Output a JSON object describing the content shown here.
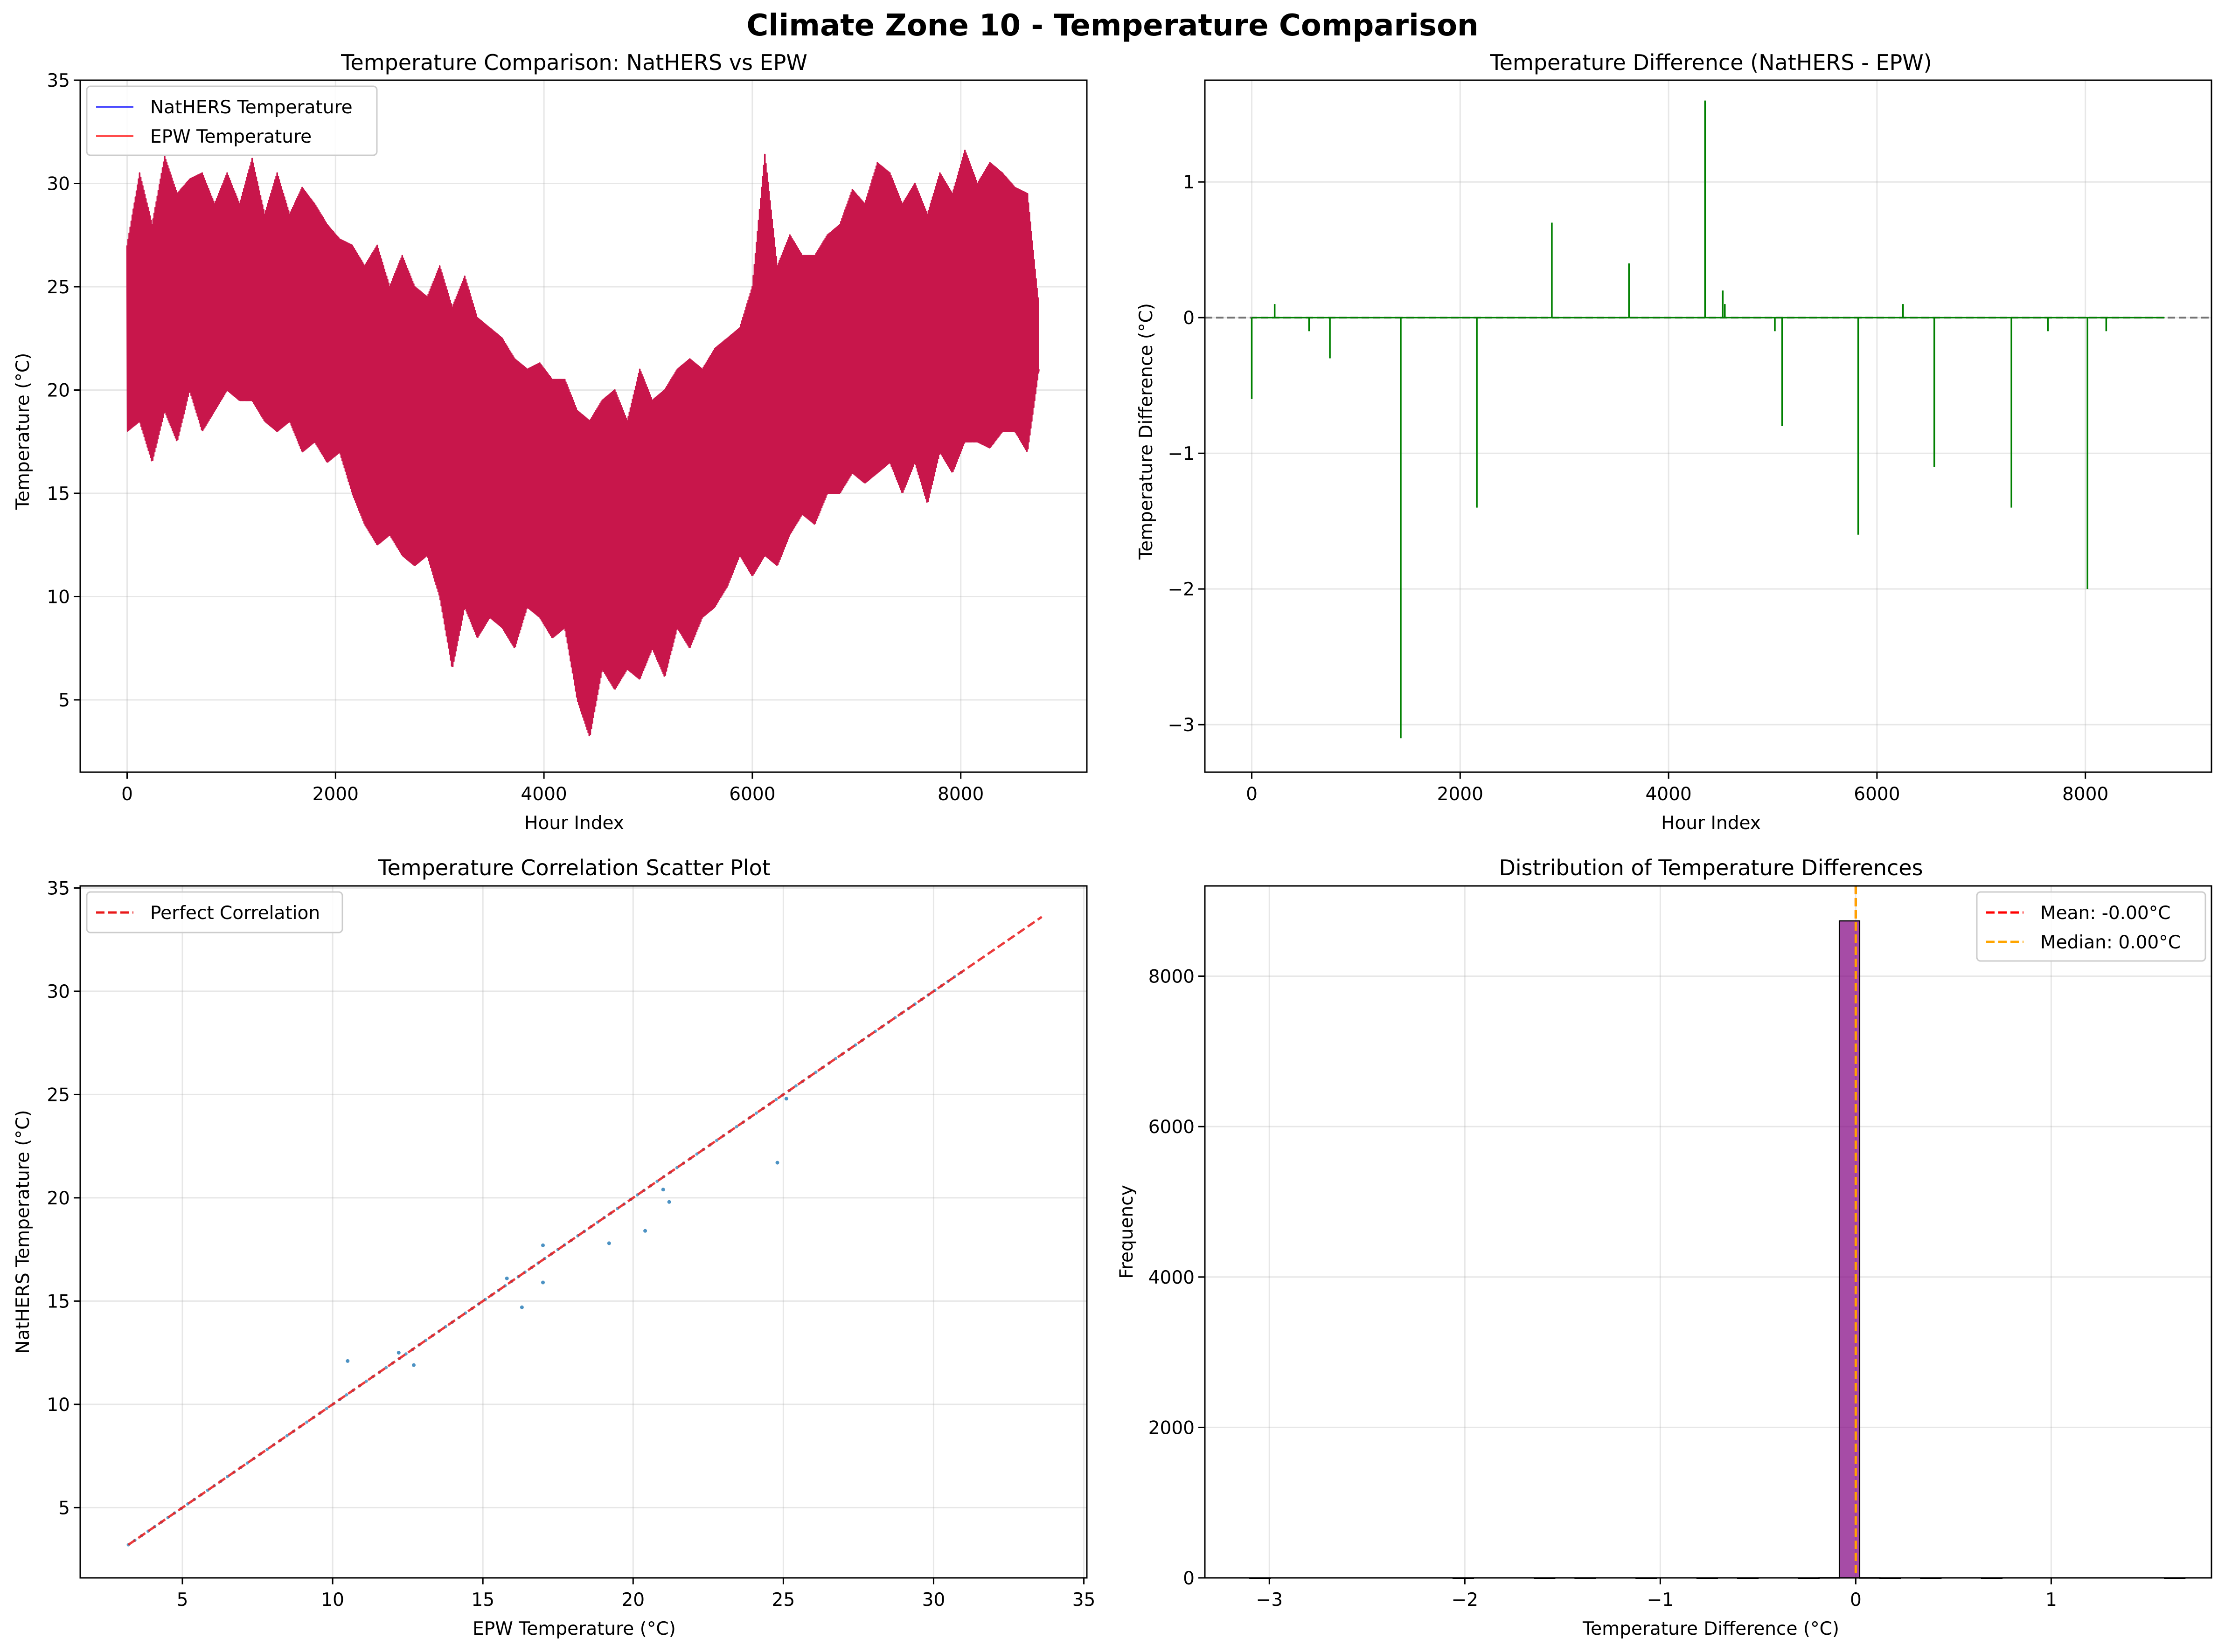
{
  "figure": {
    "title": "Climate Zone 10 - Temperature Comparison"
  },
  "chart_data": [
    {
      "type": "line",
      "title": "Temperature Comparison: NatHERS vs EPW",
      "xlabel": "Hour Index",
      "ylabel": "Temperature (°C)",
      "xlim": [
        -450,
        9210
      ],
      "ylim": [
        1.5,
        35
      ],
      "xticks": [
        0,
        2000,
        4000,
        6000,
        8000
      ],
      "yticks": [
        5,
        10,
        15,
        20,
        25,
        30,
        35
      ],
      "grid": true,
      "legend_position": "upper-left",
      "series": [
        {
          "name": "NatHERS Temperature",
          "color": "#0000ff"
        },
        {
          "name": "EPW Temperature",
          "color": "#ff0000"
        }
      ],
      "rendered_color": "#c8164b",
      "x": [
        0,
        120,
        240,
        360,
        480,
        600,
        720,
        840,
        960,
        1080,
        1200,
        1320,
        1440,
        1560,
        1680,
        1800,
        1920,
        2040,
        2160,
        2280,
        2400,
        2520,
        2640,
        2760,
        2880,
        3000,
        3120,
        3240,
        3360,
        3480,
        3600,
        3720,
        3840,
        3960,
        4080,
        4200,
        4320,
        4440,
        4560,
        4680,
        4800,
        4920,
        5040,
        5160,
        5280,
        5400,
        5520,
        5640,
        5760,
        5880,
        6000,
        6120,
        6240,
        6360,
        6480,
        6600,
        6720,
        6840,
        6960,
        7080,
        7200,
        7320,
        7440,
        7560,
        7680,
        7800,
        7920,
        8040,
        8160,
        8280,
        8400,
        8520,
        8640,
        8750
      ],
      "upper": [
        27,
        30.5,
        28,
        31.3,
        29.5,
        30.2,
        30.5,
        29,
        30.5,
        29,
        31.2,
        28.5,
        30.5,
        28.5,
        29.8,
        29,
        28,
        27.3,
        27,
        26,
        27,
        25,
        26.5,
        25,
        24.5,
        26,
        24,
        25.5,
        23.5,
        23,
        22.5,
        21.5,
        21,
        21.3,
        20.5,
        20.5,
        19,
        18.5,
        19.5,
        20,
        18.5,
        21,
        19.5,
        20,
        21,
        21.5,
        21,
        22,
        22.5,
        23,
        25,
        31.4,
        26,
        27.5,
        26.5,
        26.5,
        27.5,
        28,
        29.7,
        29,
        31,
        30.5,
        29,
        30,
        28.5,
        30.5,
        29.5,
        31.6,
        30,
        31,
        30.5,
        29.8,
        29.5,
        24
      ],
      "lower": [
        18,
        18.5,
        16.5,
        19,
        17.5,
        20,
        18,
        19,
        20,
        19.5,
        19.5,
        18.5,
        18,
        18.5,
        17,
        17.5,
        16.5,
        17,
        15,
        13.5,
        12.5,
        13,
        12,
        11.5,
        12,
        10,
        6.5,
        9.5,
        8,
        9,
        8.5,
        7.5,
        9.5,
        9,
        8,
        8.5,
        5,
        3.2,
        6.5,
        5.5,
        6.5,
        6,
        7.5,
        6.1,
        8.5,
        7.5,
        9,
        9.5,
        10.5,
        12,
        11,
        12,
        11.5,
        13,
        14,
        13.5,
        15,
        15,
        16,
        15.5,
        16,
        16.5,
        15,
        16.5,
        14.5,
        17,
        16,
        17.5,
        17.5,
        17.2,
        18,
        18,
        17,
        21
      ]
    },
    {
      "type": "line",
      "title": "Temperature Difference (NatHERS - EPW)",
      "xlabel": "Hour Index",
      "ylabel": "Temperature Difference (°C)",
      "xlim": [
        -450,
        9210
      ],
      "ylim": [
        -3.35,
        1.75
      ],
      "xticks": [
        0,
        2000,
        4000,
        6000,
        8000
      ],
      "yticks": [
        -3,
        -2,
        -1,
        0,
        1
      ],
      "grid": true,
      "zero_line": true,
      "series_color": "#008000",
      "spikes": [
        {
          "x": 0,
          "value": -0.6
        },
        {
          "x": 220,
          "value": 0.1
        },
        {
          "x": 550,
          "value": -0.1
        },
        {
          "x": 750,
          "value": -0.3
        },
        {
          "x": 1430,
          "value": -3.1
        },
        {
          "x": 2160,
          "value": -1.4
        },
        {
          "x": 2880,
          "value": 0.7
        },
        {
          "x": 3620,
          "value": 0.4
        },
        {
          "x": 4350,
          "value": 1.6
        },
        {
          "x": 4520,
          "value": 0.2
        },
        {
          "x": 4540,
          "value": 0.1
        },
        {
          "x": 5020,
          "value": -0.1
        },
        {
          "x": 5090,
          "value": -0.8
        },
        {
          "x": 5820,
          "value": -1.6
        },
        {
          "x": 6250,
          "value": 0.1
        },
        {
          "x": 6550,
          "value": -1.1
        },
        {
          "x": 7290,
          "value": -1.4
        },
        {
          "x": 7640,
          "value": -0.1
        },
        {
          "x": 8020,
          "value": -2.0
        },
        {
          "x": 8200,
          "value": -0.1
        }
      ]
    },
    {
      "type": "scatter",
      "title": "Temperature Correlation Scatter Plot",
      "xlabel": "EPW Temperature (°C)",
      "ylabel": "NatHERS Temperature (°C)",
      "xlim": [
        1.6,
        35.1
      ],
      "ylim": [
        1.6,
        35.1
      ],
      "xticks": [
        5,
        10,
        15,
        20,
        25,
        30,
        35
      ],
      "yticks": [
        5,
        10,
        15,
        20,
        25,
        30,
        35
      ],
      "grid": true,
      "legend_position": "upper-left",
      "reference_line": {
        "name": "Perfect Correlation",
        "color": "#e8191a",
        "range": [
          3.2,
          33.6
        ]
      },
      "point_color": "#1f77b4",
      "points_on_diagonal_range": [
        3.2,
        31
      ],
      "off_diagonal_points": [
        [
          10.5,
          12.1
        ],
        [
          12.2,
          12.5
        ],
        [
          12.7,
          11.9
        ],
        [
          15.8,
          16.1
        ],
        [
          16.3,
          14.7
        ],
        [
          17.0,
          17.7
        ],
        [
          17.0,
          15.9
        ],
        [
          19.2,
          17.8
        ],
        [
          20.4,
          18.4
        ],
        [
          21.0,
          20.4
        ],
        [
          21.2,
          19.8
        ],
        [
          24.8,
          21.7
        ],
        [
          25.1,
          24.8
        ]
      ]
    },
    {
      "type": "bar",
      "title": "Distribution of Temperature Differences",
      "xlabel": "Temperature Difference (°C)",
      "ylabel": "Frequency",
      "xlim": [
        -3.33,
        1.82
      ],
      "ylim": [
        0,
        9200
      ],
      "xticks": [
        -3,
        -2,
        -1,
        0,
        1
      ],
      "yticks": [
        0,
        2000,
        4000,
        6000,
        8000
      ],
      "grid": true,
      "legend_position": "upper-right",
      "bar_color": "#800080",
      "bins": [
        {
          "left": -3.1,
          "right": -2.996,
          "count": 1
        },
        {
          "left": -2.06,
          "right": -1.956,
          "count": 1
        },
        {
          "left": -1.644,
          "right": -1.54,
          "count": 1
        },
        {
          "left": -1.436,
          "right": -1.332,
          "count": 2
        },
        {
          "left": -1.124,
          "right": -1.02,
          "count": 1
        },
        {
          "left": -0.812,
          "right": -0.708,
          "count": 1
        },
        {
          "left": -0.604,
          "right": -0.5,
          "count": 1
        },
        {
          "left": -0.292,
          "right": -0.188,
          "count": 1
        },
        {
          "left": -0.188,
          "right": -0.084,
          "count": 4
        },
        {
          "left": -0.084,
          "right": 0.02,
          "count": 8735
        },
        {
          "left": 0.02,
          "right": 0.124,
          "count": 3
        },
        {
          "left": 0.124,
          "right": 0.228,
          "count": 1
        },
        {
          "left": 0.332,
          "right": 0.436,
          "count": 1
        },
        {
          "left": 0.644,
          "right": 0.748,
          "count": 1
        },
        {
          "left": 1.58,
          "right": 1.684,
          "count": 1
        }
      ],
      "mean": {
        "value": -0.0,
        "label": "Mean: -0.00°C",
        "color": "#ff0000"
      },
      "median": {
        "value": 0.0,
        "label": "Median: 0.00°C",
        "color": "#ffa500"
      }
    }
  ]
}
